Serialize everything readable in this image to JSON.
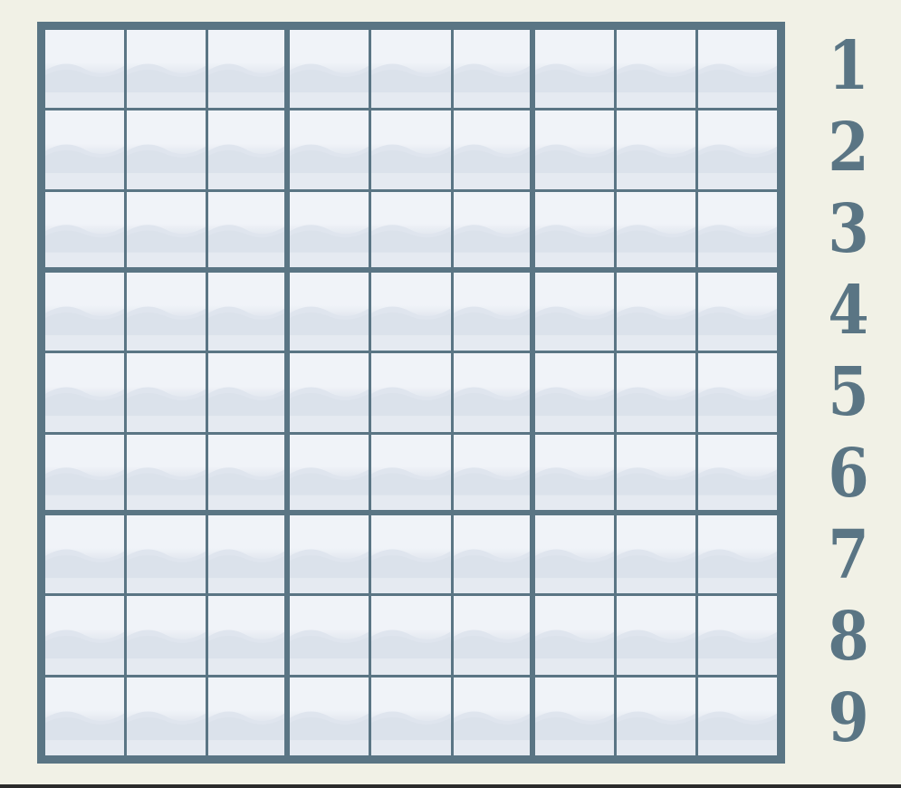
{
  "game": {
    "board": {
      "rows": 9,
      "cols": 9,
      "values": [
        [
          "",
          "",
          "",
          "",
          "",
          "",
          "",
          "",
          ""
        ],
        [
          "",
          "",
          "",
          "",
          "",
          "",
          "",
          "",
          ""
        ],
        [
          "",
          "",
          "",
          "",
          "",
          "",
          "",
          "",
          ""
        ],
        [
          "",
          "",
          "",
          "",
          "",
          "",
          "",
          "",
          ""
        ],
        [
          "",
          "",
          "",
          "",
          "",
          "",
          "",
          "",
          ""
        ],
        [
          "",
          "",
          "",
          "",
          "",
          "",
          "",
          "",
          ""
        ],
        [
          "",
          "",
          "",
          "",
          "",
          "",
          "",
          "",
          ""
        ],
        [
          "",
          "",
          "",
          "",
          "",
          "",
          "",
          "",
          ""
        ],
        [
          "",
          "",
          "",
          "",
          "",
          "",
          "",
          "",
          ""
        ]
      ]
    },
    "number_pad": [
      "1",
      "2",
      "3",
      "4",
      "5",
      "6",
      "7",
      "8",
      "9"
    ],
    "colors": {
      "background": "#f1f1e6",
      "grid_line": "#5a7584",
      "cell_light": "#f0f3f8",
      "cell_wave": "#dde3ec",
      "numeral": "#5a7584"
    }
  }
}
